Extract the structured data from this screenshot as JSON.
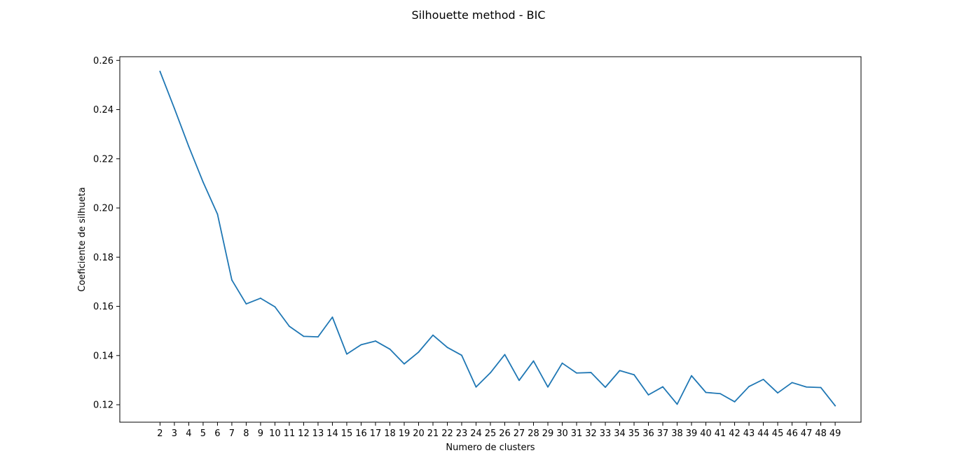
{
  "chart_data": {
    "type": "line",
    "title": "Silhouette method - BIC",
    "xlabel": "Numero de clusters",
    "ylabel": "Coeficiente de silhueta",
    "x": [
      2,
      3,
      4,
      5,
      6,
      7,
      8,
      9,
      10,
      11,
      12,
      13,
      14,
      15,
      16,
      17,
      18,
      19,
      20,
      21,
      22,
      23,
      24,
      25,
      26,
      27,
      28,
      29,
      30,
      31,
      32,
      33,
      34,
      35,
      36,
      37,
      38,
      39,
      40,
      41,
      42,
      43,
      44,
      45,
      46,
      47,
      48,
      49
    ],
    "x_tick_labels": [
      "2",
      "3",
      "4",
      "5",
      "6",
      "7",
      "8",
      "9",
      "10",
      "11",
      "12",
      "13",
      "14",
      "15",
      "16",
      "17",
      "18",
      "19",
      "20",
      "21",
      "22",
      "23",
      "24",
      "25",
      "26",
      "27",
      "28",
      "29",
      "30",
      "31",
      "32",
      "33",
      "34",
      "35",
      "36",
      "37",
      "38",
      "39",
      "40",
      "41",
      "42",
      "43",
      "44",
      "45",
      "46",
      "47",
      "48",
      "49"
    ],
    "y_ticks": [
      0.12,
      0.14,
      0.16,
      0.18,
      0.2,
      0.22,
      0.24,
      0.26
    ],
    "y_tick_labels": [
      "0.12",
      "0.14",
      "0.16",
      "0.18",
      "0.20",
      "0.22",
      "0.24",
      "0.26"
    ],
    "series": [
      {
        "color": "#1f77b4",
        "values": [
          0.2555,
          0.2405,
          0.225,
          0.2105,
          0.1975,
          0.1707,
          0.161,
          0.1633,
          0.1598,
          0.1519,
          0.1478,
          0.1476,
          0.1556,
          0.1406,
          0.1444,
          0.1459,
          0.1426,
          0.1366,
          0.1414,
          0.1483,
          0.1433,
          0.1401,
          0.1272,
          0.133,
          0.1404,
          0.1299,
          0.1378,
          0.1272,
          0.1369,
          0.1329,
          0.1331,
          0.1271,
          0.1339,
          0.1322,
          0.124,
          0.1273,
          0.1202,
          0.1318,
          0.125,
          0.1245,
          0.1212,
          0.1274,
          0.1303,
          0.1248,
          0.129,
          0.1272,
          0.127,
          0.1196
        ]
      }
    ],
    "xlim": [
      -0.8,
      50.8
    ],
    "ylim": [
      0.1129,
      0.2615
    ],
    "grid": false,
    "legend": "none"
  }
}
